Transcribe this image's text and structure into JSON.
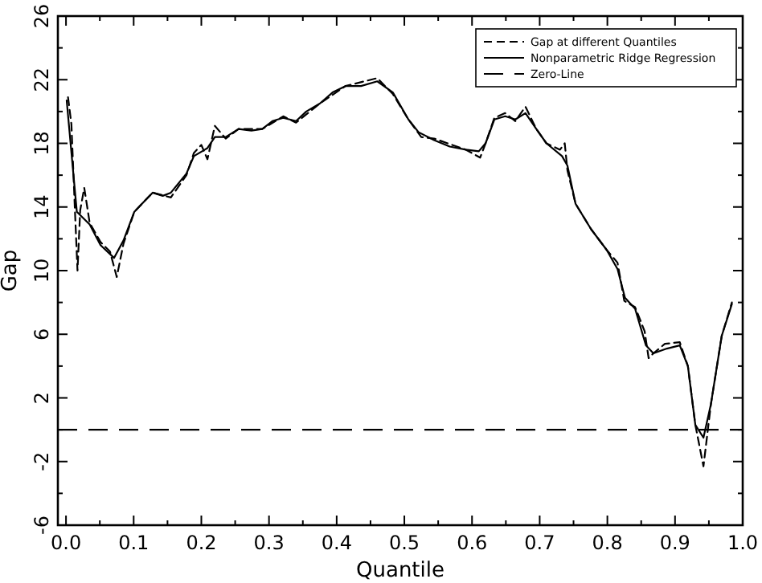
{
  "chart_data": {
    "type": "line",
    "xlabel": "Quantile",
    "ylabel": "Gap",
    "xlim": [
      -0.012,
      1.0
    ],
    "ylim": [
      -6,
      26
    ],
    "xticks": [
      {
        "value": 0,
        "label": "0.0"
      },
      {
        "value": 0.05,
        "label": null
      },
      {
        "value": 0.1,
        "label": "0.1"
      },
      {
        "value": 0.15,
        "label": null
      },
      {
        "value": 0.2,
        "label": "0.2"
      },
      {
        "value": 0.25,
        "label": null
      },
      {
        "value": 0.3,
        "label": "0.3"
      },
      {
        "value": 0.35,
        "label": null
      },
      {
        "value": 0.4,
        "label": "0.4"
      },
      {
        "value": 0.45,
        "label": null
      },
      {
        "value": 0.5,
        "label": "0.5"
      },
      {
        "value": 0.55,
        "label": null
      },
      {
        "value": 0.6,
        "label": "0.6"
      },
      {
        "value": 0.65,
        "label": null
      },
      {
        "value": 0.7,
        "label": "0.7"
      },
      {
        "value": 0.75,
        "label": null
      },
      {
        "value": 0.8,
        "label": "0.8"
      },
      {
        "value": 0.85,
        "label": null
      },
      {
        "value": 0.9,
        "label": "0.9"
      },
      {
        "value": 0.95,
        "label": null
      },
      {
        "value": 1,
        "label": "1.0"
      }
    ],
    "yticks": [
      -6,
      {
        "value": -4,
        "label": null
      },
      -2,
      {
        "value": 0,
        "label": null
      },
      2,
      {
        "value": 4,
        "label": null
      },
      6,
      {
        "value": 8,
        "label": null
      },
      10,
      {
        "value": 12,
        "label": null
      },
      14,
      {
        "value": 16,
        "label": null
      },
      18,
      {
        "value": 20,
        "label": null
      },
      22,
      {
        "value": 24,
        "label": null
      },
      26
    ],
    "grid": false,
    "legend": "top right",
    "marker": "none",
    "series": [
      {
        "name": "Gap at different Quantiles",
        "color": "#000000",
        "line_style": "dashed",
        "x": [
          0.003,
          0.008,
          0.013,
          0.017,
          0.021,
          0.027,
          0.035,
          0.051,
          0.065,
          0.075,
          0.085,
          0.101,
          0.128,
          0.155,
          0.178,
          0.189,
          0.2,
          0.209,
          0.22,
          0.236,
          0.255,
          0.29,
          0.321,
          0.34,
          0.375,
          0.413,
          0.46,
          0.483,
          0.506,
          0.525,
          0.544,
          0.591,
          0.612,
          0.62,
          0.633,
          0.649,
          0.664,
          0.679,
          0.695,
          0.71,
          0.73,
          0.737,
          0.741,
          0.753,
          0.776,
          0.799,
          0.815,
          0.825,
          0.841,
          0.855,
          0.861,
          0.868,
          0.885,
          0.907,
          0.919,
          0.93,
          0.942,
          0.953,
          0.969,
          0.984
        ],
        "values": [
          20.9,
          19.2,
          14.0,
          10.0,
          13.8,
          15.2,
          13.0,
          11.8,
          11.2,
          9.6,
          11.7,
          13.7,
          14.9,
          14.6,
          16.0,
          17.4,
          17.9,
          17.0,
          19.1,
          18.3,
          18.9,
          18.9,
          19.7,
          19.3,
          20.5,
          21.6,
          22.1,
          21.1,
          19.5,
          18.4,
          18.3,
          17.6,
          17.1,
          18.0,
          19.6,
          19.9,
          19.4,
          20.3,
          18.9,
          18.0,
          17.6,
          18.0,
          16.3,
          14.2,
          12.6,
          11.3,
          10.5,
          8.1,
          7.7,
          6.2,
          4.5,
          4.8,
          5.4,
          5.5,
          4.0,
          0.3,
          -2.3,
          1.6,
          5.9,
          8.0
        ]
      },
      {
        "name": "Nonparametric Ridge Regression",
        "color": "#000000",
        "line_style": "solid",
        "x": [
          0.001,
          0.016,
          0.035,
          0.051,
          0.071,
          0.085,
          0.101,
          0.128,
          0.143,
          0.155,
          0.178,
          0.189,
          0.209,
          0.22,
          0.236,
          0.255,
          0.274,
          0.29,
          0.305,
          0.321,
          0.34,
          0.355,
          0.375,
          0.394,
          0.413,
          0.436,
          0.46,
          0.483,
          0.506,
          0.521,
          0.544,
          0.567,
          0.591,
          0.61,
          0.62,
          0.633,
          0.649,
          0.664,
          0.679,
          0.695,
          0.71,
          0.733,
          0.741,
          0.753,
          0.776,
          0.799,
          0.815,
          0.826,
          0.841,
          0.857,
          0.868,
          0.888,
          0.907,
          0.919,
          0.93,
          0.942,
          0.953,
          0.969,
          0.984
        ],
        "values": [
          20.7,
          13.7,
          12.9,
          11.6,
          10.8,
          11.9,
          13.7,
          14.9,
          14.7,
          14.9,
          16.1,
          17.2,
          17.7,
          18.4,
          18.4,
          18.9,
          18.8,
          18.9,
          19.4,
          19.6,
          19.4,
          20.0,
          20.5,
          21.2,
          21.6,
          21.6,
          21.9,
          21.2,
          19.5,
          18.7,
          18.2,
          17.8,
          17.6,
          17.5,
          18.0,
          19.5,
          19.7,
          19.5,
          19.9,
          18.9,
          18.0,
          17.2,
          16.6,
          14.2,
          12.6,
          11.3,
          10.1,
          8.3,
          7.6,
          5.3,
          4.8,
          5.1,
          5.3,
          4.0,
          0.3,
          -0.5,
          1.6,
          5.9,
          7.9
        ]
      }
    ],
    "ref_lines": [
      {
        "axis": "y",
        "value": 0,
        "label": "Zero-Line",
        "line_style": "dashed",
        "color": "#000000"
      }
    ]
  }
}
